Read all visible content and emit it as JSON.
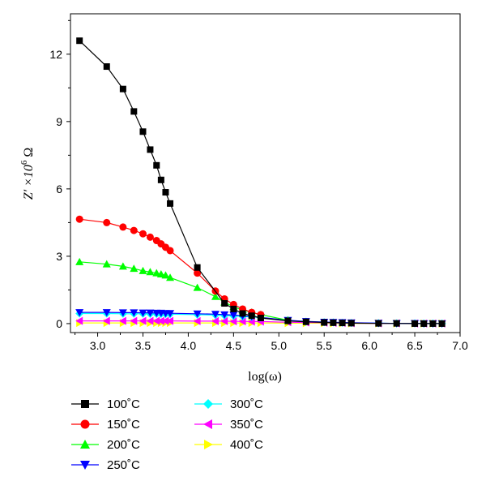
{
  "chart_data": {
    "type": "line",
    "xlabel": "log(ω)",
    "ylabel": "Z′ ×10",
    "ylabel_sup": "6",
    "ylabel_unit": " Ω",
    "xlim": [
      2.7,
      7.0
    ],
    "ylim": [
      -0.4,
      13.8
    ],
    "xticks": [
      "3.0",
      "3.5",
      "4.0",
      "4.5",
      "5.0",
      "5.5",
      "6.0",
      "6.5",
      "7.0"
    ],
    "yticks": [
      "0",
      "3",
      "6",
      "9",
      "12"
    ],
    "grid": false,
    "legend_position": "bottom",
    "series": [
      {
        "name": "100˚C",
        "color": "#000000",
        "marker": "square",
        "x": [
          2.8,
          3.1,
          3.28,
          3.4,
          3.5,
          3.58,
          3.65,
          3.7,
          3.75,
          3.8,
          4.1,
          4.4,
          4.5,
          4.6,
          4.7,
          4.8,
          5.1,
          5.3,
          5.5,
          5.6,
          5.7,
          5.8,
          6.1,
          6.3,
          6.5,
          6.6,
          6.7,
          6.8
        ],
        "y": [
          12.6,
          11.45,
          10.45,
          9.45,
          8.55,
          7.75,
          7.05,
          6.4,
          5.85,
          5.35,
          2.5,
          0.9,
          0.65,
          0.45,
          0.35,
          0.25,
          0.12,
          0.08,
          0.05,
          0.04,
          0.03,
          0.02,
          0.01,
          0.01,
          0.0,
          0.0,
          0.0,
          0.0
        ]
      },
      {
        "name": "150˚C",
        "color": "#ff0000",
        "marker": "circle",
        "x": [
          2.8,
          3.1,
          3.28,
          3.4,
          3.5,
          3.58,
          3.65,
          3.7,
          3.75,
          3.8,
          4.1,
          4.3,
          4.4,
          4.5,
          4.6,
          4.7,
          4.8
        ],
        "y": [
          4.65,
          4.5,
          4.3,
          4.15,
          4.0,
          3.85,
          3.7,
          3.55,
          3.4,
          3.25,
          2.25,
          1.45,
          1.1,
          0.85,
          0.65,
          0.5,
          0.4
        ]
      },
      {
        "name": "200˚C",
        "color": "#00ff00",
        "marker": "triangle-up",
        "x": [
          2.8,
          3.1,
          3.28,
          3.4,
          3.5,
          3.58,
          3.65,
          3.7,
          3.75,
          3.8,
          4.1,
          4.3,
          4.4,
          4.5,
          4.6,
          4.7,
          4.8,
          5.1
        ],
        "y": [
          2.75,
          2.65,
          2.55,
          2.45,
          2.35,
          2.3,
          2.25,
          2.2,
          2.15,
          2.05,
          1.6,
          1.2,
          0.95,
          0.75,
          0.6,
          0.5,
          0.4,
          0.15
        ]
      },
      {
        "name": "250˚C",
        "color": "#0000ff",
        "marker": "triangle-down",
        "x": [
          2.8,
          3.1,
          3.28,
          3.4,
          3.5,
          3.58,
          3.65,
          3.7,
          3.75,
          3.8,
          4.1,
          4.3,
          4.4,
          4.5,
          4.6,
          4.7,
          4.8,
          5.1,
          5.3,
          5.5,
          5.6,
          5.7,
          5.8,
          6.1,
          6.3,
          6.5,
          6.6,
          6.7,
          6.8
        ],
        "y": [
          0.5,
          0.5,
          0.49,
          0.49,
          0.48,
          0.48,
          0.47,
          0.47,
          0.46,
          0.46,
          0.44,
          0.42,
          0.4,
          0.38,
          0.35,
          0.32,
          0.28,
          0.15,
          0.1,
          0.07,
          0.06,
          0.05,
          0.04,
          0.02,
          0.01,
          0.01,
          0.0,
          0.0,
          0.0
        ]
      },
      {
        "name": "300˚C",
        "color": "#00ffff",
        "marker": "diamond",
        "x": [
          2.8,
          3.1,
          3.28,
          3.4,
          3.5,
          3.58,
          3.65,
          3.7,
          3.75,
          3.8,
          4.1,
          4.3,
          4.4,
          4.5,
          4.6,
          4.7,
          4.8,
          5.1,
          5.3,
          5.5,
          5.6,
          5.7,
          5.8,
          6.1,
          6.3,
          6.5,
          6.6,
          6.7,
          6.8
        ],
        "y": [
          0.45,
          0.45,
          0.44,
          0.44,
          0.44,
          0.43,
          0.43,
          0.43,
          0.42,
          0.42,
          0.4,
          0.38,
          0.36,
          0.34,
          0.32,
          0.3,
          0.26,
          0.14,
          0.09,
          0.06,
          0.05,
          0.04,
          0.03,
          0.02,
          0.01,
          0.01,
          0.0,
          0.0,
          0.0
        ]
      },
      {
        "name": "350˚C",
        "color": "#ff00ff",
        "marker": "triangle-left",
        "x": [
          2.8,
          3.1,
          3.28,
          3.4,
          3.5,
          3.58,
          3.65,
          3.7,
          3.75,
          3.8,
          4.1,
          4.3,
          4.4,
          4.5,
          4.6,
          4.7,
          4.8,
          5.1,
          5.3,
          5.5,
          5.6,
          5.7,
          5.8,
          6.1,
          6.3,
          6.5,
          6.6,
          6.7,
          6.8
        ],
        "y": [
          0.12,
          0.12,
          0.12,
          0.12,
          0.12,
          0.12,
          0.12,
          0.12,
          0.12,
          0.12,
          0.11,
          0.11,
          0.11,
          0.1,
          0.1,
          0.09,
          0.09,
          0.06,
          0.05,
          0.04,
          0.03,
          0.03,
          0.02,
          0.01,
          0.01,
          0.0,
          0.0,
          0.0,
          0.0
        ]
      },
      {
        "name": "400˚C",
        "color": "#ffff00",
        "marker": "triangle-right",
        "x": [
          2.8,
          3.1,
          3.28,
          3.4,
          3.5,
          3.58,
          3.65,
          3.7,
          3.75,
          3.8,
          4.1,
          4.3,
          4.4,
          4.5,
          4.6,
          4.7,
          4.8,
          5.1,
          5.3,
          5.5,
          5.6,
          5.7,
          5.8,
          6.1,
          6.3,
          6.5,
          6.6,
          6.7,
          6.8
        ],
        "y": [
          0.03,
          0.03,
          0.03,
          0.03,
          0.03,
          0.03,
          0.03,
          0.03,
          0.03,
          0.03,
          0.03,
          0.03,
          0.03,
          0.03,
          0.03,
          0.03,
          0.03,
          0.02,
          0.02,
          0.02,
          0.01,
          0.01,
          0.01,
          0.01,
          0.0,
          0.0,
          0.0,
          0.0,
          0.0
        ]
      }
    ]
  }
}
